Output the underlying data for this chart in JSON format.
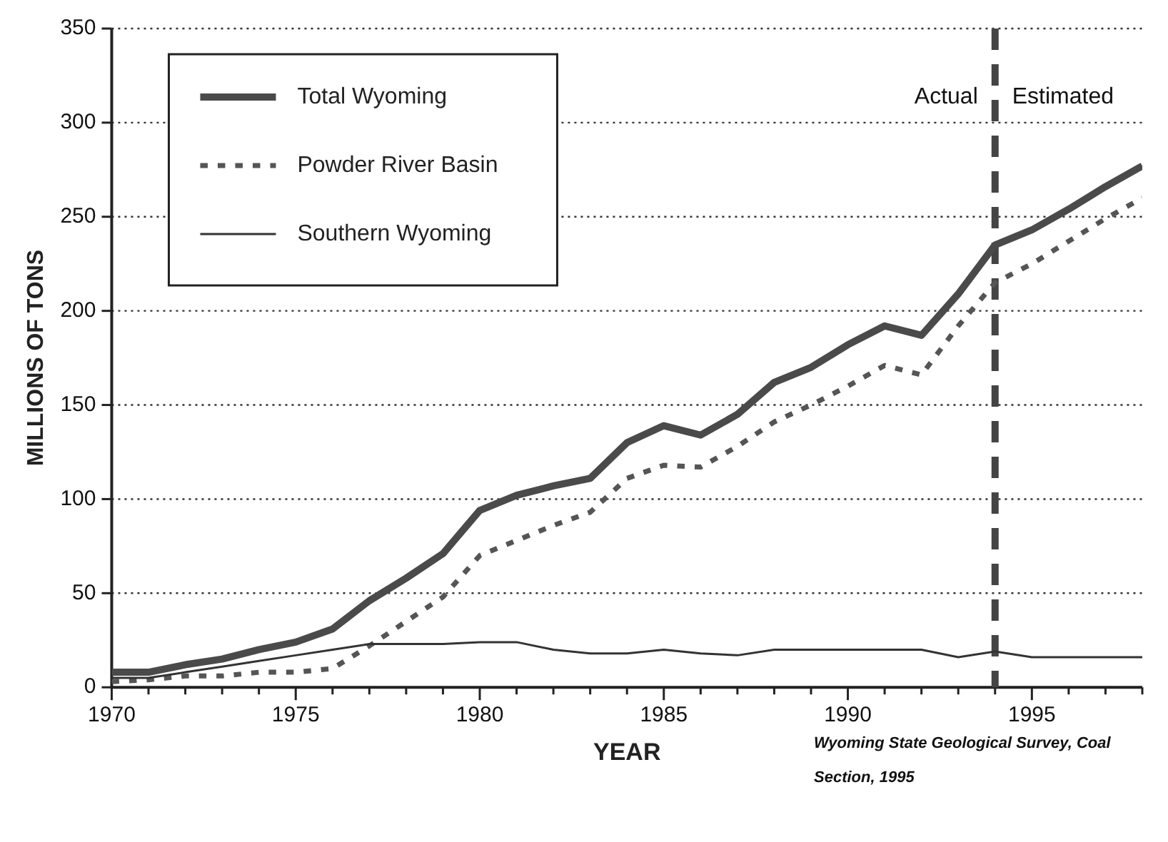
{
  "chart_data": {
    "type": "line",
    "xlabel": "YEAR",
    "ylabel": "MILLIONS OF TONS",
    "x": [
      1970,
      1971,
      1972,
      1973,
      1974,
      1975,
      1976,
      1977,
      1978,
      1979,
      1980,
      1981,
      1982,
      1983,
      1984,
      1985,
      1986,
      1987,
      1988,
      1989,
      1990,
      1991,
      1992,
      1993,
      1994,
      1995,
      1996,
      1997,
      1998
    ],
    "series": [
      {
        "name": "Total Wyoming",
        "color": "#4a4a4a",
        "line_style": "solid",
        "values": [
          8,
          8,
          12,
          15,
          20,
          24,
          31,
          46,
          58,
          71,
          94,
          102,
          107,
          111,
          130,
          139,
          134,
          145,
          162,
          170,
          182,
          192,
          187,
          209,
          235,
          243,
          254,
          266,
          277
        ]
      },
      {
        "name": "Powder River Basin",
        "color": "#555555",
        "line_style": "dotted",
        "values": [
          3,
          4,
          6,
          6,
          8,
          8,
          10,
          22,
          35,
          48,
          70,
          78,
          86,
          93,
          111,
          118,
          117,
          128,
          141,
          150,
          160,
          171,
          166,
          192,
          215,
          225,
          237,
          249,
          260
        ]
      },
      {
        "name": "Southern Wyoming",
        "color": "#333333",
        "line_style": "solid",
        "values": [
          5,
          5,
          8,
          11,
          14,
          17,
          20,
          23,
          23,
          23,
          24,
          24,
          20,
          18,
          18,
          20,
          18,
          17,
          20,
          20,
          20,
          20,
          20,
          16,
          19,
          16,
          16,
          16,
          16
        ]
      }
    ],
    "xlim": [
      1970,
      1998
    ],
    "xticks": [
      1970,
      {
        "value": 1971,
        "label": null
      },
      {
        "value": 1972,
        "label": null
      },
      {
        "value": 1973,
        "label": null
      },
      {
        "value": 1974,
        "label": null
      },
      1975,
      {
        "value": 1976,
        "label": null
      },
      {
        "value": 1977,
        "label": null
      },
      {
        "value": 1978,
        "label": null
      },
      {
        "value": 1979,
        "label": null
      },
      1980,
      {
        "value": 1981,
        "label": null
      },
      {
        "value": 1982,
        "label": null
      },
      {
        "value": 1983,
        "label": null
      },
      {
        "value": 1984,
        "label": null
      },
      1985,
      {
        "value": 1986,
        "label": null
      },
      {
        "value": 1987,
        "label": null
      },
      {
        "value": 1988,
        "label": null
      },
      {
        "value": 1989,
        "label": null
      },
      1990,
      {
        "value": 1991,
        "label": null
      },
      {
        "value": 1992,
        "label": null
      },
      {
        "value": 1993,
        "label": null
      },
      {
        "value": 1994,
        "label": null
      },
      1995,
      {
        "value": 1996,
        "label": null
      },
      {
        "value": 1997,
        "label": null
      },
      {
        "value": 1998,
        "label": null
      }
    ],
    "ylim": [
      0,
      350
    ],
    "yticks": [
      0,
      50,
      100,
      150,
      200,
      250,
      300,
      350
    ],
    "grid": "y",
    "legend": "top left",
    "marker": "none",
    "ref_lines": [
      {
        "axis": "x",
        "value": 1994,
        "color": "#444444",
        "line_style": "dashed"
      }
    ],
    "annotations": [
      "Actual",
      "Estimated",
      "Wyoming State Geological Survey, Coal Section, 1995"
    ]
  }
}
